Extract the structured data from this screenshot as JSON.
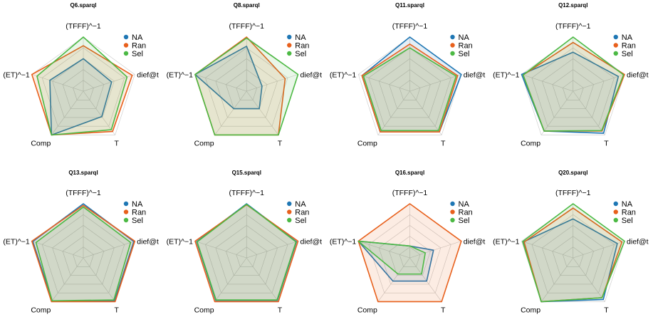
{
  "colors": {
    "NA": "#1f77b4",
    "Ran": "#e8601c",
    "Sel": "#4cb944",
    "grid": "#c8c8c8"
  },
  "chart_data": [
    {
      "type": "radar",
      "title": "Q6.sparql",
      "axes": [
        "(TFFF)^−1",
        "dief@t",
        "T",
        "Comp",
        "(ET)^−1"
      ],
      "grid": true,
      "legend_position": "right",
      "series": [
        {
          "name": "NA",
          "values": [
            0.6,
            0.55,
            0.58,
            1.0,
            0.65
          ]
        },
        {
          "name": "Ran",
          "values": [
            0.84,
            0.95,
            0.92,
            1.0,
            1.0
          ]
        },
        {
          "name": "Sel",
          "values": [
            1.0,
            0.85,
            0.88,
            1.0,
            0.9
          ]
        }
      ]
    },
    {
      "type": "radar",
      "title": "Q8.sparql",
      "axes": [
        "(TFFF)^−1",
        "dief@t",
        "T",
        "Comp",
        "(ET)^−1"
      ],
      "grid": true,
      "legend_position": "right",
      "series": [
        {
          "name": "NA",
          "values": [
            0.83,
            0.3,
            0.4,
            0.4,
            1.0
          ]
        },
        {
          "name": "Ran",
          "values": [
            1.0,
            0.75,
            1.0,
            1.0,
            1.0
          ]
        },
        {
          "name": "Sel",
          "values": [
            0.98,
            1.0,
            1.0,
            1.0,
            1.0
          ]
        }
      ]
    },
    {
      "type": "radar",
      "title": "Q11.sparql",
      "axes": [
        "(TFFF)^−1",
        "dief@t",
        "T",
        "Comp",
        "(ET)^−1"
      ],
      "grid": true,
      "legend_position": "right",
      "series": [
        {
          "name": "NA",
          "values": [
            1.0,
            1.0,
            0.93,
            0.93,
            0.93
          ]
        },
        {
          "name": "Ran",
          "values": [
            0.87,
            0.93,
            0.93,
            0.93,
            0.93
          ]
        },
        {
          "name": "Sel",
          "values": [
            0.8,
            0.9,
            0.9,
            0.9,
            0.9
          ]
        }
      ]
    },
    {
      "type": "radar",
      "title": "Q12.sparql",
      "axes": [
        "(TFFF)^−1",
        "dief@t",
        "T",
        "Comp",
        "(ET)^−1"
      ],
      "grid": true,
      "legend_position": "right",
      "series": [
        {
          "name": "NA",
          "values": [
            0.72,
            0.88,
            0.96,
            0.91,
            1.0
          ]
        },
        {
          "name": "Ran",
          "values": [
            0.9,
            1.0,
            0.91,
            0.91,
            0.97
          ]
        },
        {
          "name": "Sel",
          "values": [
            1.0,
            0.98,
            0.9,
            0.91,
            0.97
          ]
        }
      ]
    },
    {
      "type": "radar",
      "title": "Q13.sparql",
      "axes": [
        "(TFFF)^−1",
        "dief@t",
        "T",
        "Comp",
        "(ET)^−1"
      ],
      "grid": true,
      "legend_position": "right",
      "series": [
        {
          "name": "NA",
          "values": [
            1.0,
            0.98,
            0.98,
            0.98,
            0.98
          ]
        },
        {
          "name": "Ran",
          "values": [
            0.97,
            1.0,
            1.0,
            1.0,
            1.0
          ]
        },
        {
          "name": "Sel",
          "values": [
            0.94,
            0.92,
            0.96,
            0.98,
            0.92
          ]
        }
      ]
    },
    {
      "type": "radar",
      "title": "Q15.sparql",
      "axes": [
        "(TFFF)^−1",
        "dief@t",
        "T",
        "Comp",
        "(ET)^−1"
      ],
      "grid": true,
      "legend_position": "right",
      "series": [
        {
          "name": "NA",
          "values": [
            1.0,
            0.97,
            0.97,
            0.97,
            0.97
          ]
        },
        {
          "name": "Ran",
          "values": [
            0.98,
            1.0,
            1.0,
            1.0,
            1.0
          ]
        },
        {
          "name": "Sel",
          "values": [
            0.99,
            0.96,
            0.96,
            0.96,
            0.96
          ]
        }
      ]
    },
    {
      "type": "radar",
      "title": "Q16.sparql",
      "axes": [
        "(TFFF)^−1",
        "dief@t",
        "T",
        "Comp",
        "(ET)^−1"
      ],
      "grid": true,
      "legend_position": "right",
      "series": [
        {
          "name": "NA",
          "values": [
            0.22,
            0.46,
            0.53,
            0.53,
            1.0
          ]
        },
        {
          "name": "Ran",
          "values": [
            1.0,
            1.0,
            1.0,
            1.0,
            1.0
          ]
        },
        {
          "name": "Sel",
          "values": [
            0.22,
            0.3,
            0.37,
            0.37,
            1.0
          ]
        }
      ]
    },
    {
      "type": "radar",
      "title": "Q20.sparql",
      "axes": [
        "(TFFF)^−1",
        "dief@t",
        "T",
        "Comp",
        "(ET)^−1"
      ],
      "grid": true,
      "legend_position": "right",
      "series": [
        {
          "name": "NA",
          "values": [
            0.72,
            0.86,
            0.95,
            1.0,
            0.96
          ]
        },
        {
          "name": "Ran",
          "values": [
            0.92,
            0.95,
            0.91,
            1.0,
            0.95
          ]
        },
        {
          "name": "Sel",
          "values": [
            1.0,
            1.0,
            0.91,
            1.0,
            0.98
          ]
        }
      ]
    }
  ]
}
